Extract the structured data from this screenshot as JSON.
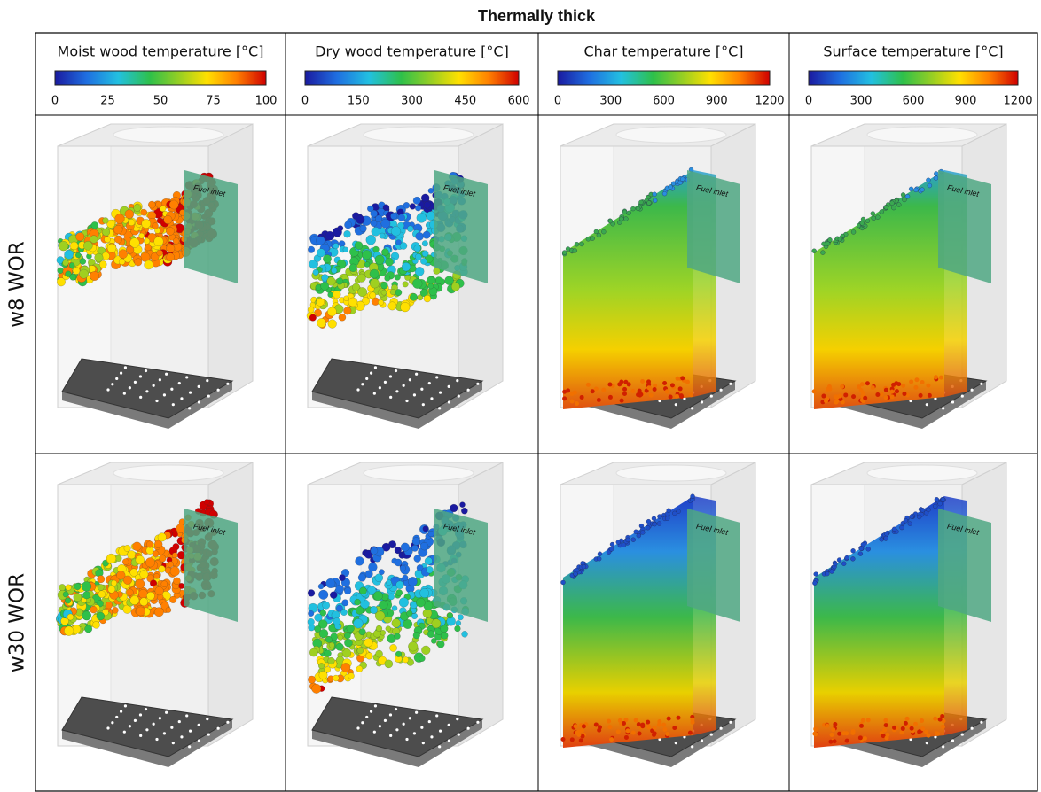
{
  "title": "Thermally thick",
  "columns": [
    {
      "label": "Moist wood temperature [°C]",
      "ticks": [
        0,
        25,
        50,
        75,
        100
      ]
    },
    {
      "label": "Dry wood temperature [°C]",
      "ticks": [
        0,
        150,
        300,
        450,
        600
      ]
    },
    {
      "label": "Char temperature [°C]",
      "ticks": [
        0,
        300,
        600,
        900,
        1200
      ]
    },
    {
      "label": "Surface temperature [°C]",
      "ticks": [
        0,
        300,
        600,
        900,
        1200
      ]
    }
  ],
  "rows": [
    {
      "label": "w8 WOR",
      "cells": [
        "Fuel inlet",
        "Fuel inlet",
        "Fuel inlet",
        "Fuel inlet"
      ]
    },
    {
      "label": "w30 WOR",
      "cells": [
        "Fuel inlet",
        "Fuel inlet",
        "Fuel inlet",
        "Fuel inlet"
      ]
    }
  ]
}
